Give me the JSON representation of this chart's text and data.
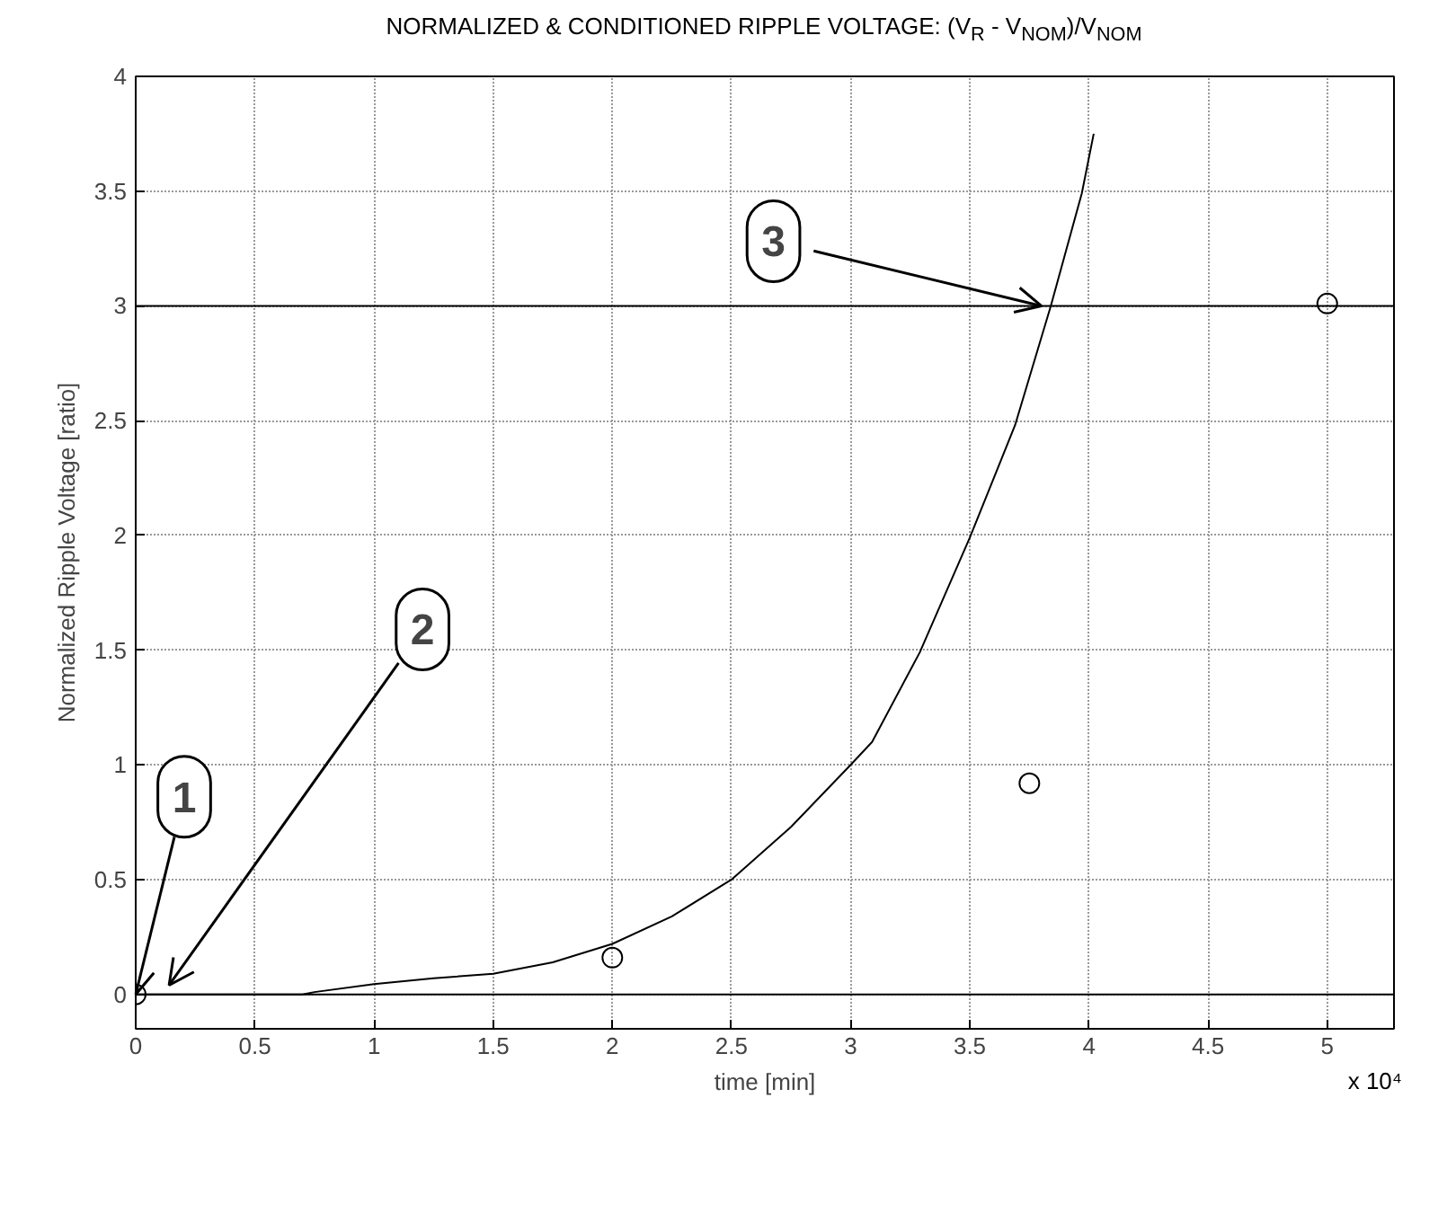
{
  "chart_data": {
    "type": "line",
    "title": "NORMALIZED & CONDITIONED RIPPLE VOLTAGE: (V$_{R}$ - V$_{NOM}$)/V$_{NOM}$",
    "xlabel": "time [min]",
    "ylabel": "Normalized Ripple Voltage [ratio]",
    "xlim": [
      0,
      5.28
    ],
    "ylim": [
      -0.15,
      4
    ],
    "xticks": [
      0,
      0.5,
      1,
      1.5,
      2,
      2.5,
      3,
      3.5,
      4,
      4.5,
      5
    ],
    "yticks": [
      0,
      0.5,
      1,
      1.5,
      2,
      2.5,
      3,
      3.5,
      4
    ],
    "grid": true,
    "series": [
      {
        "color": "#000000",
        "x": [
          0,
          0.3,
          0.7,
          0.75,
          1.0,
          1.25,
          1.5,
          1.75,
          2.0,
          2.25,
          2.5,
          2.75,
          3.0,
          3.09,
          3.29,
          3.5,
          3.69,
          3.84,
          3.97,
          4.02
        ],
        "values": [
          0,
          0,
          0,
          0.01,
          0.045,
          0.07,
          0.09,
          0.14,
          0.22,
          0.34,
          0.5,
          0.73,
          1.0,
          1.1,
          1.49,
          1.99,
          2.48,
          3.0,
          3.49,
          3.75
        ]
      },
      {
        "type": "line",
        "color": "#000000",
        "x": [
          0,
          5.28
        ],
        "values": [
          0,
          0
        ]
      },
      {
        "type": "line",
        "color": "#000000",
        "x": [
          0,
          5.28
        ],
        "values": [
          3,
          3
        ]
      },
      {
        "type": "scatter",
        "marker": "circle",
        "color": "#000000",
        "x": [
          0,
          2.0,
          3.75,
          5.0
        ],
        "values": [
          0,
          0.16,
          0.92,
          3.01
        ]
      }
    ],
    "annotations": [
      {
        "text": "1",
        "x": 0,
        "y": 0
      },
      {
        "text": "2",
        "x": 0.14,
        "y": 0.04
      },
      {
        "text": "3",
        "x": 3.8,
        "y": 3
      },
      "x 10⁴"
    ]
  }
}
